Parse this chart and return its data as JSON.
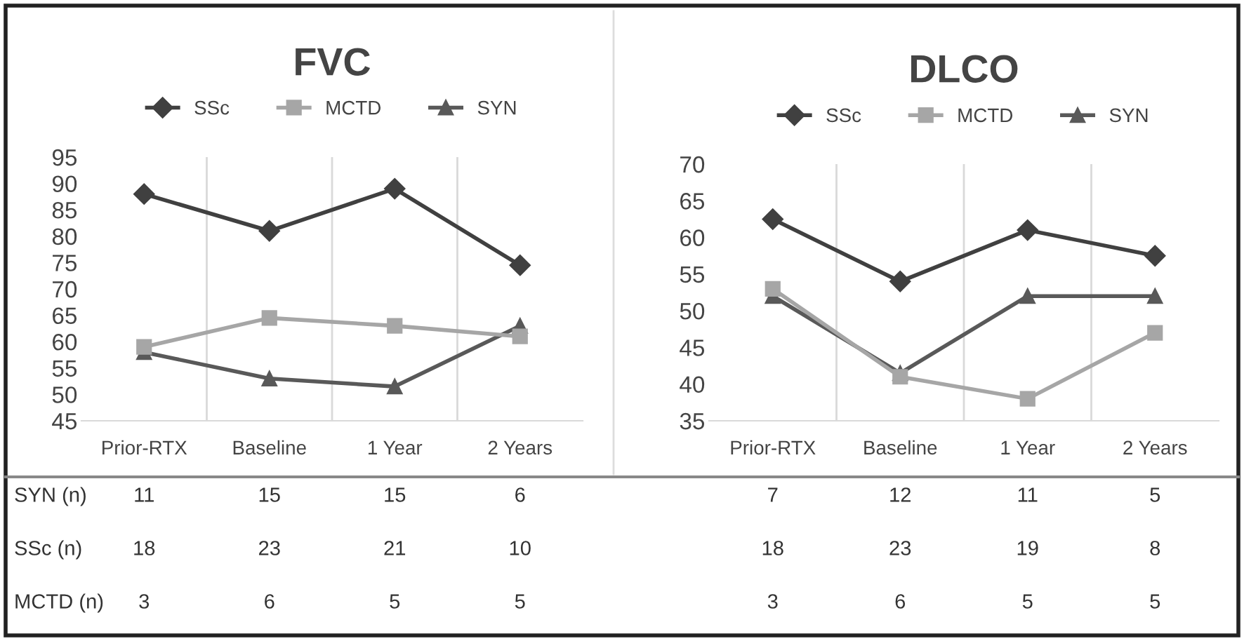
{
  "chart_data": [
    {
      "type": "line",
      "title": "FVC",
      "categories": [
        "Prior-RTX",
        "Baseline",
        "1 Year",
        "2 Years"
      ],
      "series": [
        {
          "name": "SSc",
          "color": "#404040",
          "marker": "diamond",
          "values": [
            88,
            81,
            89,
            74.5
          ]
        },
        {
          "name": "MCTD",
          "color": "#a6a6a6",
          "marker": "square",
          "values": [
            59,
            64.5,
            63,
            61
          ]
        },
        {
          "name": "SYN",
          "color": "#595959",
          "marker": "triangle",
          "values": [
            58,
            53,
            51.5,
            63
          ]
        }
      ],
      "ylim": [
        45,
        95
      ],
      "yticks": [
        45,
        50,
        55,
        60,
        65,
        70,
        75,
        80,
        85,
        90,
        95
      ],
      "grid": "x",
      "legend": "top",
      "line_style": "solid",
      "annotations": [
        "SYN (n)",
        "11",
        "15",
        "15",
        "6",
        "SSc (n)",
        "18",
        "23",
        "21",
        "10",
        "MCTD (n)",
        "3",
        "6",
        "5",
        "5"
      ]
    },
    {
      "type": "line",
      "title": "DLCO",
      "categories": [
        "Prior-RTX",
        "Baseline",
        "1 Year",
        "2 Years"
      ],
      "series": [
        {
          "name": "SSc",
          "color": "#404040",
          "marker": "diamond",
          "values": [
            62.5,
            54,
            61,
            57.5
          ]
        },
        {
          "name": "MCTD",
          "color": "#a6a6a6",
          "marker": "square",
          "values": [
            53,
            41,
            38,
            47
          ]
        },
        {
          "name": "SYN",
          "color": "#595959",
          "marker": "triangle",
          "values": [
            52,
            41.5,
            52,
            52
          ]
        }
      ],
      "ylim": [
        35,
        70
      ],
      "yticks": [
        35,
        40,
        45,
        50,
        55,
        60,
        65,
        70
      ],
      "grid": "x",
      "legend": "top",
      "line_style": "solid",
      "annotations": [
        "7",
        "12",
        "11",
        "5",
        "18",
        "23",
        "19",
        "8",
        "3",
        "6",
        "5",
        "5"
      ]
    }
  ]
}
